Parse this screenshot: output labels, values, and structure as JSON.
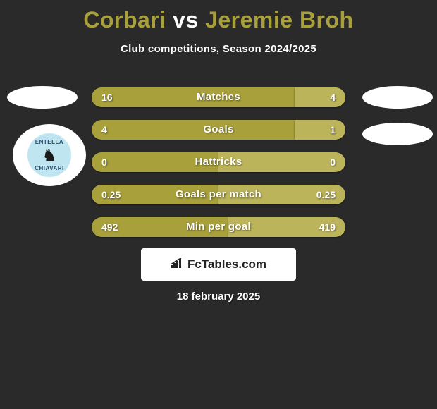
{
  "title": {
    "player1": "Corbari",
    "vs": "vs",
    "player2": "Jeremie Broh",
    "player1_color": "#a8a03b",
    "vs_color": "#ffffff",
    "player2_color": "#a8a03b"
  },
  "subtitle": "Club competitions, Season 2024/2025",
  "badges": {
    "left_top": {
      "bg": "#ffffff"
    },
    "right_top": {
      "bg": "#ffffff"
    },
    "right_mid": {
      "bg": "#ffffff"
    },
    "club": {
      "text_top": "ENTELLA",
      "text_bottom": "CHIAVARI",
      "ring_color": "#bfe6f0"
    }
  },
  "bars": {
    "left_color": "#a8a03b",
    "right_color": "#bcb45a",
    "track_width": 360,
    "rows": [
      {
        "label": "Matches",
        "left_val": "16",
        "right_val": "4",
        "left_num": 16,
        "right_num": 4
      },
      {
        "label": "Goals",
        "left_val": "4",
        "right_val": "1",
        "left_num": 4,
        "right_num": 1
      },
      {
        "label": "Hattricks",
        "left_val": "0",
        "right_val": "0",
        "left_num": 0,
        "right_num": 0
      },
      {
        "label": "Goals per match",
        "left_val": "0.25",
        "right_val": "0.25",
        "left_num": 0.25,
        "right_num": 0.25
      },
      {
        "label": "Min per goal",
        "left_val": "492",
        "right_val": "419",
        "left_num": 492,
        "right_num": 419
      }
    ]
  },
  "brand": {
    "icon": "📊",
    "text": "FcTables.com"
  },
  "date": "18 february 2025",
  "colors": {
    "background": "#2a2a2a",
    "text_white": "#ffffff"
  }
}
